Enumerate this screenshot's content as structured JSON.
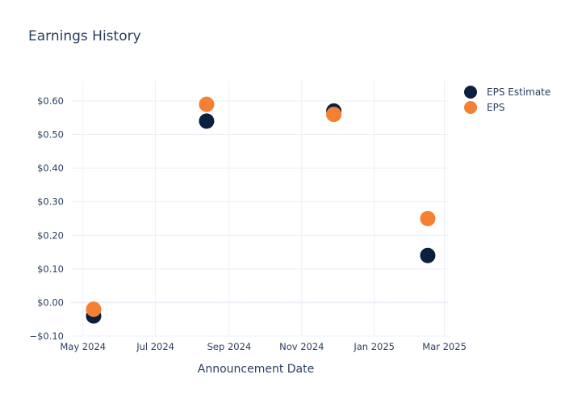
{
  "chart_data": {
    "type": "scatter",
    "title": "Earnings History",
    "xlabel": "Announcement Date",
    "ylabel": "",
    "x_type": "date",
    "xlim": [
      "2024-04-21",
      "2025-03-04"
    ],
    "ylim": [
      -0.1,
      0.66
    ],
    "x_ticks": [
      {
        "date": "2024-05-01",
        "label": "May 2024"
      },
      {
        "date": "2024-07-01",
        "label": "Jul 2024"
      },
      {
        "date": "2024-09-01",
        "label": "Sep 2024"
      },
      {
        "date": "2024-11-01",
        "label": "Nov 2024"
      },
      {
        "date": "2025-01-01",
        "label": "Jan 2025"
      },
      {
        "date": "2025-03-01",
        "label": "Mar 2025"
      }
    ],
    "y_ticks": [
      {
        "value": -0.1,
        "label": "−$0.10"
      },
      {
        "value": 0.0,
        "label": "$0.00"
      },
      {
        "value": 0.1,
        "label": "$0.10"
      },
      {
        "value": 0.2,
        "label": "$0.20"
      },
      {
        "value": 0.3,
        "label": "$0.30"
      },
      {
        "value": 0.4,
        "label": "$0.40"
      },
      {
        "value": 0.5,
        "label": "$0.50"
      },
      {
        "value": 0.6,
        "label": "$0.60"
      }
    ],
    "grid": true,
    "legend_position": "top-right",
    "series": [
      {
        "name": "EPS Estimate",
        "color": "#0b1f3f",
        "points": [
          {
            "x": "2024-05-10",
            "y": -0.04
          },
          {
            "x": "2024-08-13",
            "y": 0.54
          },
          {
            "x": "2024-11-28",
            "y": 0.57
          },
          {
            "x": "2025-02-15",
            "y": 0.14
          }
        ]
      },
      {
        "name": "EPS",
        "color": "#f58031",
        "points": [
          {
            "x": "2024-05-10",
            "y": -0.02
          },
          {
            "x": "2024-08-13",
            "y": 0.59
          },
          {
            "x": "2024-11-28",
            "y": 0.56
          },
          {
            "x": "2025-02-15",
            "y": 0.25
          }
        ]
      }
    ]
  }
}
